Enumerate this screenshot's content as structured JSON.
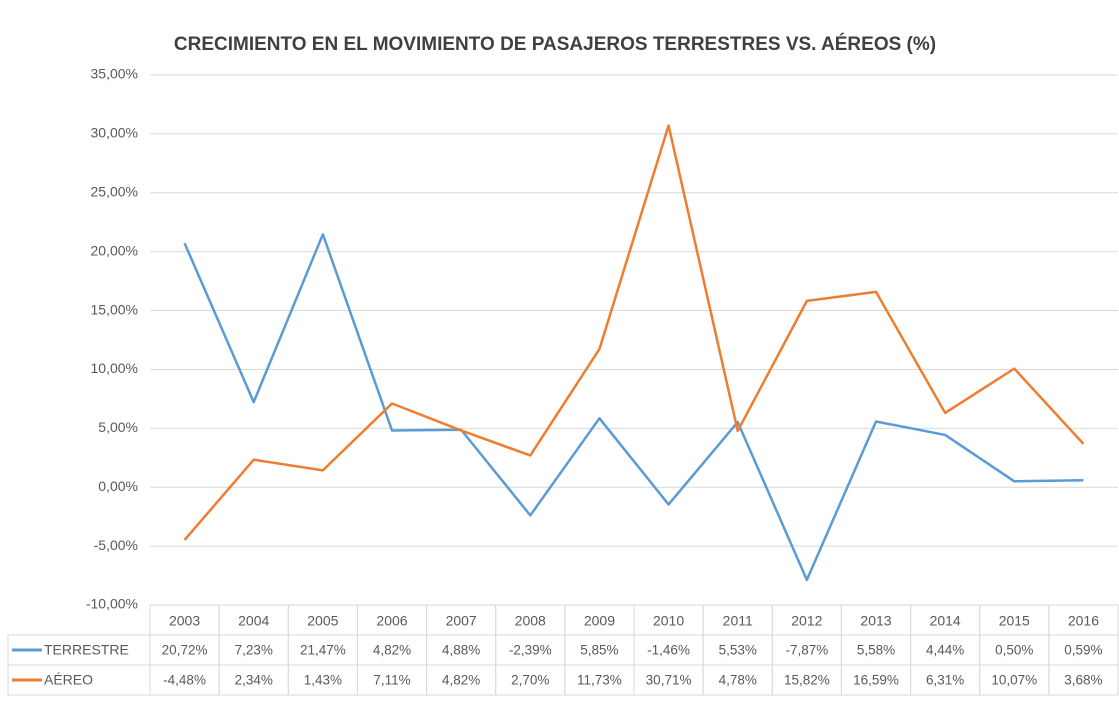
{
  "chart_data": {
    "type": "line",
    "title": "CRECIMIENTO  EN EL MOVIMIENTO DE PASAJEROS TERRESTRES VS. AÉREOS (%)",
    "categories": [
      "2003",
      "2004",
      "2005",
      "2006",
      "2007",
      "2008",
      "2009",
      "2010",
      "2011",
      "2012",
      "2013",
      "2014",
      "2015",
      "2016"
    ],
    "series": [
      {
        "name": "TERRESTRE",
        "color": "#5b9bd5",
        "values": [
          20.72,
          7.23,
          21.47,
          4.82,
          4.88,
          -2.39,
          5.85,
          -1.46,
          5.53,
          -7.87,
          5.58,
          4.44,
          0.5,
          0.59
        ],
        "value_labels": [
          "20,72%",
          "7,23%",
          "21,47%",
          "4,82%",
          "4,88%",
          "-2,39%",
          "5,85%",
          "-1,46%",
          "5,53%",
          "-7,87%",
          "5,58%",
          "4,44%",
          "0,50%",
          "0,59%"
        ]
      },
      {
        "name": "AÉREO",
        "color": "#ed7d31",
        "values": [
          -4.48,
          2.34,
          1.43,
          7.11,
          4.82,
          2.7,
          11.73,
          30.71,
          4.78,
          15.82,
          16.59,
          6.31,
          10.07,
          3.68
        ],
        "value_labels": [
          "-4,48%",
          "2,34%",
          "1,43%",
          "7,11%",
          "4,82%",
          "2,70%",
          "11,73%",
          "30,71%",
          "4,78%",
          "15,82%",
          "16,59%",
          "6,31%",
          "10,07%",
          "3,68%"
        ]
      }
    ],
    "ylim": [
      -10,
      35
    ],
    "yticks": [
      {
        "value": -10,
        "label": "-10,00%"
      },
      {
        "value": -5,
        "label": "-5,00%"
      },
      {
        "value": 0,
        "label": "0,00%"
      },
      {
        "value": 5,
        "label": "5,00%"
      },
      {
        "value": 10,
        "label": "10,00%"
      },
      {
        "value": 15,
        "label": "15,00%"
      },
      {
        "value": 20,
        "label": "20,00%"
      },
      {
        "value": 25,
        "label": "25,00%"
      },
      {
        "value": 30,
        "label": "30,00%"
      },
      {
        "value": 35,
        "label": "35,00%"
      }
    ],
    "grid": true
  }
}
